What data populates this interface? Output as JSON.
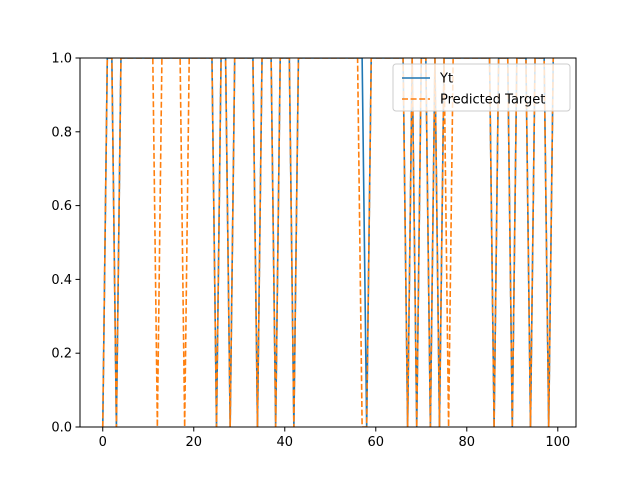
{
  "chart_data": {
    "type": "line",
    "title": "",
    "xlabel": "",
    "ylabel": "",
    "xlim": [
      -5,
      104
    ],
    "ylim": [
      0,
      1
    ],
    "xticks": [
      0,
      20,
      40,
      60,
      80,
      100
    ],
    "yticks": [
      0.0,
      0.2,
      0.4,
      0.6,
      0.8,
      1.0
    ],
    "x_tick_labels": [
      "0",
      "20",
      "40",
      "60",
      "80",
      "100"
    ],
    "y_tick_labels": [
      "0.0",
      "0.2",
      "0.4",
      "0.6",
      "0.8",
      "1.0"
    ],
    "grid": false,
    "legend_position": "upper right",
    "x": [
      0,
      1,
      2,
      3,
      4,
      5,
      6,
      7,
      8,
      9,
      10,
      11,
      12,
      13,
      14,
      15,
      16,
      17,
      18,
      19,
      20,
      21,
      22,
      23,
      24,
      25,
      26,
      27,
      28,
      29,
      30,
      31,
      32,
      33,
      34,
      35,
      36,
      37,
      38,
      39,
      40,
      41,
      42,
      43,
      44,
      45,
      46,
      47,
      48,
      49,
      50,
      51,
      52,
      53,
      54,
      55,
      56,
      57,
      58,
      59,
      60,
      61,
      62,
      63,
      64,
      65,
      66,
      67,
      68,
      69,
      70,
      71,
      72,
      73,
      74,
      75,
      76,
      77,
      78,
      79,
      80,
      81,
      82,
      83,
      84,
      85,
      86,
      87,
      88,
      89,
      90,
      91,
      92,
      93,
      94,
      95,
      96,
      97,
      98,
      99
    ],
    "series": [
      {
        "name": "Yt",
        "color": "#1f77b4",
        "style": "solid",
        "values": [
          0,
          1,
          1,
          0,
          1,
          1,
          1,
          1,
          1,
          1,
          1,
          1,
          1,
          1,
          1,
          1,
          1,
          1,
          1,
          1,
          1,
          1,
          1,
          1,
          1,
          0,
          1,
          1,
          0,
          1,
          1,
          1,
          1,
          1,
          0,
          1,
          1,
          1,
          0,
          1,
          1,
          1,
          0,
          1,
          1,
          1,
          1,
          1,
          1,
          1,
          1,
          1,
          1,
          1,
          1,
          1,
          1,
          1,
          0,
          1,
          1,
          1,
          1,
          1,
          1,
          1,
          1,
          0,
          1,
          0,
          1,
          1,
          0,
          1,
          0,
          1,
          1,
          1,
          1,
          1,
          1,
          1,
          1,
          1,
          1,
          1,
          0,
          1,
          1,
          1,
          0,
          1,
          1,
          1,
          0,
          1,
          1,
          1,
          0,
          1
        ]
      },
      {
        "name": "Predicted Target",
        "color": "#ff7f0e",
        "style": "dashed",
        "values": [
          0,
          1,
          1,
          0,
          1,
          1,
          1,
          1,
          1,
          1,
          1,
          1,
          0,
          1,
          1,
          1,
          1,
          1,
          0,
          1,
          1,
          1,
          1,
          1,
          1,
          0,
          1,
          1,
          0,
          1,
          1,
          1,
          1,
          1,
          0,
          1,
          1,
          1,
          0,
          1,
          1,
          1,
          0,
          1,
          1,
          1,
          1,
          1,
          1,
          1,
          1,
          1,
          1,
          1,
          1,
          1,
          1,
          0,
          0,
          1,
          1,
          1,
          1,
          1,
          1,
          1,
          1,
          0,
          1,
          0,
          1,
          1,
          0,
          1,
          0,
          1,
          0,
          1,
          1,
          1,
          1,
          1,
          1,
          1,
          1,
          1,
          0,
          1,
          1,
          1,
          0,
          1,
          1,
          1,
          0,
          1,
          1,
          1,
          0,
          1
        ]
      }
    ]
  }
}
